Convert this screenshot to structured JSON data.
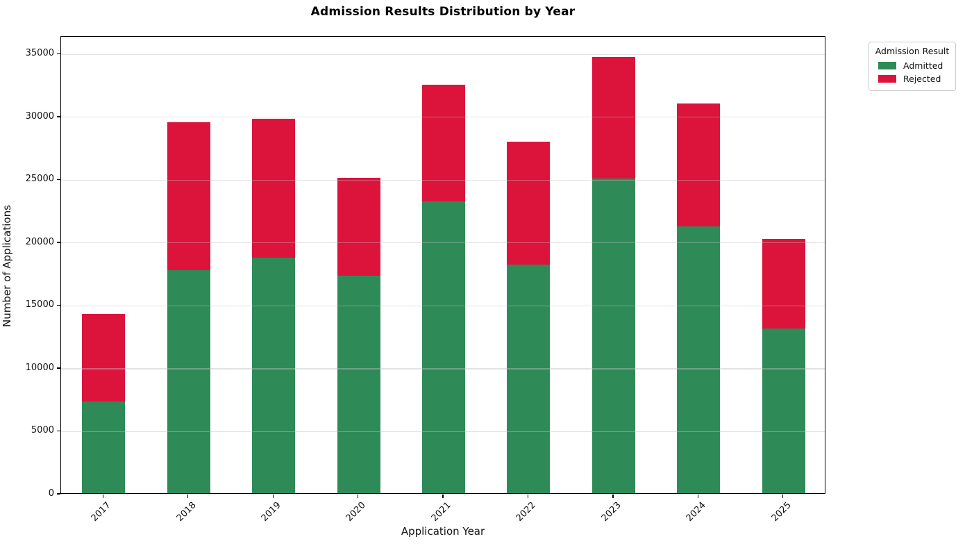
{
  "chart_data": {
    "type": "bar",
    "stacked": true,
    "title": "Admission Results Distribution by Year",
    "xlabel": "Application Year",
    "ylabel": "Number of Applications",
    "categories": [
      "2017",
      "2018",
      "2019",
      "2020",
      "2021",
      "2022",
      "2023",
      "2024",
      "2025"
    ],
    "series": [
      {
        "name": "Admitted",
        "color": "#2e8b57",
        "values": [
          7300,
          17750,
          18750,
          17300,
          23200,
          18200,
          25000,
          21200,
          13100
        ]
      },
      {
        "name": "Rejected",
        "color": "#dc143c",
        "values": [
          6950,
          11750,
          11000,
          7800,
          9300,
          9750,
          9700,
          9800,
          7100
        ]
      }
    ],
    "totals": [
      14250,
      29500,
      29750,
      25100,
      32500,
      27950,
      34700,
      31000,
      20200
    ],
    "ylim": [
      0,
      36400
    ],
    "yticks": [
      0,
      5000,
      10000,
      15000,
      20000,
      25000,
      30000,
      35000
    ],
    "grid": "horizontal",
    "legend": {
      "title": "Admission Result",
      "position": "outside-top-right"
    }
  }
}
